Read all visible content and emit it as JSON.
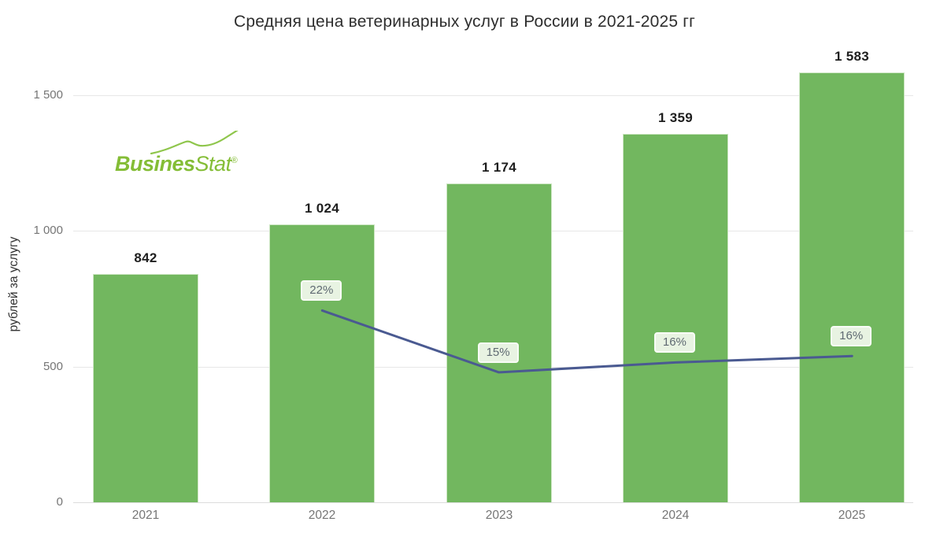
{
  "title": "Средняя цена ветеринарных услуг в России в 2021-2025 гг",
  "y_axis": {
    "label": "рублей за услугу",
    "tick_labels": [
      "0",
      "500",
      "1 000",
      "1 500"
    ],
    "tick_values": [
      0,
      500,
      1000,
      1500
    ]
  },
  "x_axis": {
    "categories": [
      "2021",
      "2022",
      "2023",
      "2024",
      "2025"
    ]
  },
  "logo": {
    "text_bold": "Busines",
    "text_italic": "Stat",
    "registered_mark": "®"
  },
  "chart_data": {
    "type": "bar",
    "title": "Средняя цена ветеринарных услуг в России в 2021-2025 гг",
    "categories": [
      "2021",
      "2022",
      "2023",
      "2024",
      "2025"
    ],
    "series": [
      {
        "type": "bar",
        "axis": "primary",
        "values": [
          842,
          1024,
          1174,
          1359,
          1583
        ],
        "value_labels": [
          "842",
          "1 024",
          "1 174",
          "1 359",
          "1 583"
        ]
      },
      {
        "type": "line",
        "axis": "secondary",
        "categories": [
          "2022",
          "2023",
          "2024",
          "2025"
        ],
        "values": [
          22,
          15,
          16,
          16
        ],
        "value_labels": [
          "22%",
          "15%",
          "16%",
          "16%"
        ]
      }
    ],
    "ylabel": "рублей за услугу",
    "ylim": [
      0,
      1600
    ],
    "grid": true,
    "legend": false
  },
  "colors": {
    "bar_fill": "#72b75f",
    "bar_border": "#cde6c3",
    "line": "#4a5a91",
    "pct_label_bg": "#e8f3e2",
    "pct_label_text": "#5f6a72",
    "pct_label_ring": "#f8fcf6",
    "gridline": "#e7e7e7",
    "axis_line": "#dcdcdc",
    "tick_text": "#757575",
    "title_text": "#2e2e2e",
    "value_text": "#1e1e1e",
    "logo_green": "#84bd36",
    "logo_green_light": "#8fc64c"
  }
}
